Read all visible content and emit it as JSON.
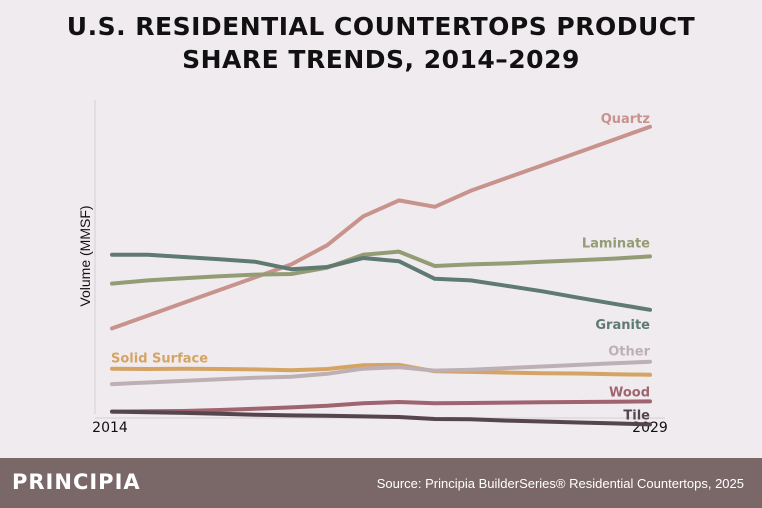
{
  "title_line1": "U.S. RESIDENTIAL COUNTERTOPS PRODUCT",
  "title_line2": "SHARE TRENDS, 2014–2029",
  "footer": {
    "brand": "PRINCIPIA",
    "source": "Source: Principia BuilderSeries® Residential Countertops, 2025"
  },
  "chart_data": {
    "type": "line",
    "title": "U.S. RESIDENTIAL COUNTERTOPS PRODUCT SHARE TRENDS, 2014–2029",
    "ylabel": "Volume (MMSF)",
    "xlabel": "",
    "x": [
      2014,
      2015,
      2016,
      2017,
      2018,
      2019,
      2020,
      2021,
      2022,
      2023,
      2024,
      2025,
      2026,
      2027,
      2028,
      2029
    ],
    "x_tick_labels": [
      "2014",
      "2029"
    ],
    "ylim": [
      0,
      100
    ],
    "grid": false,
    "series": [
      {
        "name": "Quartz",
        "color": "#c9938d",
        "values": [
          28,
          32,
          36,
          40,
          44,
          48,
          54,
          63,
          68,
          66,
          71,
          75,
          79,
          83,
          87,
          91
        ]
      },
      {
        "name": "Laminate",
        "color": "#939c74",
        "values": [
          42,
          43,
          43.7,
          44.3,
          44.8,
          45,
          47,
          51,
          52,
          47.5,
          48,
          48.3,
          48.8,
          49.3,
          49.8,
          50.5
        ]
      },
      {
        "name": "Granite",
        "color": "#5f7a70",
        "values": [
          51,
          51,
          50.3,
          49.6,
          48.8,
          46.5,
          47.2,
          50,
          49,
          43.5,
          43,
          41.3,
          39.6,
          37.6,
          35.7,
          33.8
        ]
      },
      {
        "name": "Solid Surface",
        "color": "#d5a465",
        "values": [
          15.4,
          15.3,
          15.4,
          15.3,
          15.2,
          14.9,
          15.3,
          16.5,
          16.6,
          14.6,
          14.4,
          14.2,
          14,
          13.9,
          13.7,
          13.5
        ]
      },
      {
        "name": "Other",
        "color": "#bdb0b5",
        "values": [
          10.6,
          11.1,
          11.6,
          12.1,
          12.6,
          12.9,
          13.8,
          15.4,
          15.9,
          14.8,
          15.1,
          15.6,
          16.1,
          16.6,
          17.1,
          17.6
        ]
      },
      {
        "name": "Wood",
        "color": "#9f6470",
        "values": [
          2,
          2.1,
          2.2,
          2.5,
          2.9,
          3.3,
          3.8,
          4.6,
          5,
          4.6,
          4.7,
          4.8,
          4.9,
          5,
          5.1,
          5.2
        ]
      },
      {
        "name": "Tile",
        "color": "#55464d",
        "values": [
          2,
          1.8,
          1.6,
          1.3,
          1,
          0.8,
          0.7,
          0.5,
          0.3,
          -0.3,
          -0.4,
          -0.8,
          -1.1,
          -1.4,
          -1.7,
          -2
        ]
      }
    ]
  }
}
